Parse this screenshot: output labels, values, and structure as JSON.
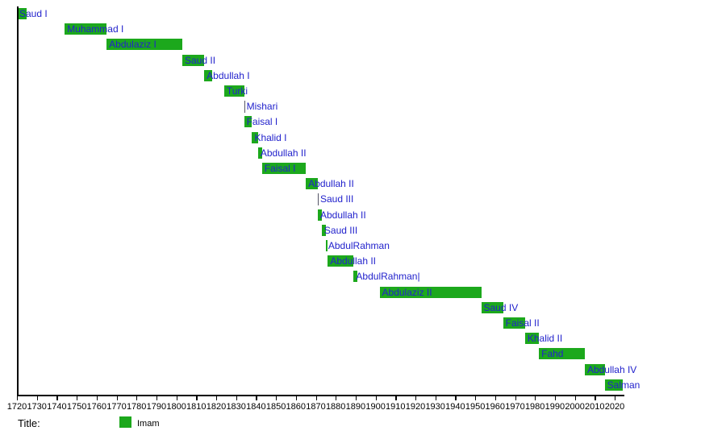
{
  "chart_data": {
    "type": "bar",
    "subtype": "gantt-timeline",
    "title_label": "Title:",
    "legend": {
      "label": "Imam",
      "color": "#1CA81C"
    },
    "bar_color": "#1CA81C",
    "zero_duration_marker_color": "#555566",
    "label_color": "#2222CC",
    "axis_color": "#000000",
    "axis": {
      "start": 1720,
      "end": 2020,
      "step": 10,
      "ticks": [
        1720,
        1730,
        1740,
        1750,
        1760,
        1770,
        1780,
        1790,
        1800,
        1810,
        1820,
        1830,
        1840,
        1850,
        1860,
        1870,
        1880,
        1890,
        1900,
        1910,
        1920,
        1930,
        1940,
        1950,
        1960,
        1970,
        1980,
        1990,
        2000,
        2010,
        2020
      ]
    },
    "bars": [
      {
        "label": "Saud I",
        "start": 1720,
        "end": 1725
      },
      {
        "label": "Muhammad I",
        "start": 1744,
        "end": 1765
      },
      {
        "label": "Abdulaziz I",
        "start": 1765,
        "end": 1803
      },
      {
        "label": "Saud II",
        "start": 1803,
        "end": 1814
      },
      {
        "label": "Abdullah I",
        "start": 1814,
        "end": 1818
      },
      {
        "label": "Turki",
        "start": 1824,
        "end": 1834
      },
      {
        "label": "Mishari",
        "start": 1834,
        "end": 1834
      },
      {
        "label": "Faisal I",
        "start": 1834,
        "end": 1838
      },
      {
        "label": "Khalid I",
        "start": 1838,
        "end": 1841
      },
      {
        "label": "Abdullah II",
        "start": 1841,
        "end": 1843
      },
      {
        "label": "Faisal I",
        "start": 1843,
        "end": 1865
      },
      {
        "label": "Abdullah II",
        "start": 1865,
        "end": 1871
      },
      {
        "label": "Saud III",
        "start": 1871,
        "end": 1871
      },
      {
        "label": "Abdullah II",
        "start": 1871,
        "end": 1873
      },
      {
        "label": "Saud III",
        "start": 1873,
        "end": 1875
      },
      {
        "label": "AbdulRahman",
        "start": 1875,
        "end": 1876
      },
      {
        "label": "Abdullah II",
        "start": 1876,
        "end": 1889
      },
      {
        "label": "AbdulRahman|",
        "start": 1889,
        "end": 1891
      },
      {
        "label": "Abdulaziz II",
        "start": 1902,
        "end": 1953
      },
      {
        "label": "Saud IV",
        "start": 1953,
        "end": 1964
      },
      {
        "label": "Faisal II",
        "start": 1964,
        "end": 1975
      },
      {
        "label": "Khalid II",
        "start": 1975,
        "end": 1982
      },
      {
        "label": "Fahd",
        "start": 1982,
        "end": 2005
      },
      {
        "label": "Abdullah IV",
        "start": 2005,
        "end": 2015
      },
      {
        "label": "Salman",
        "start": 2015,
        "end": 2024
      }
    ]
  }
}
